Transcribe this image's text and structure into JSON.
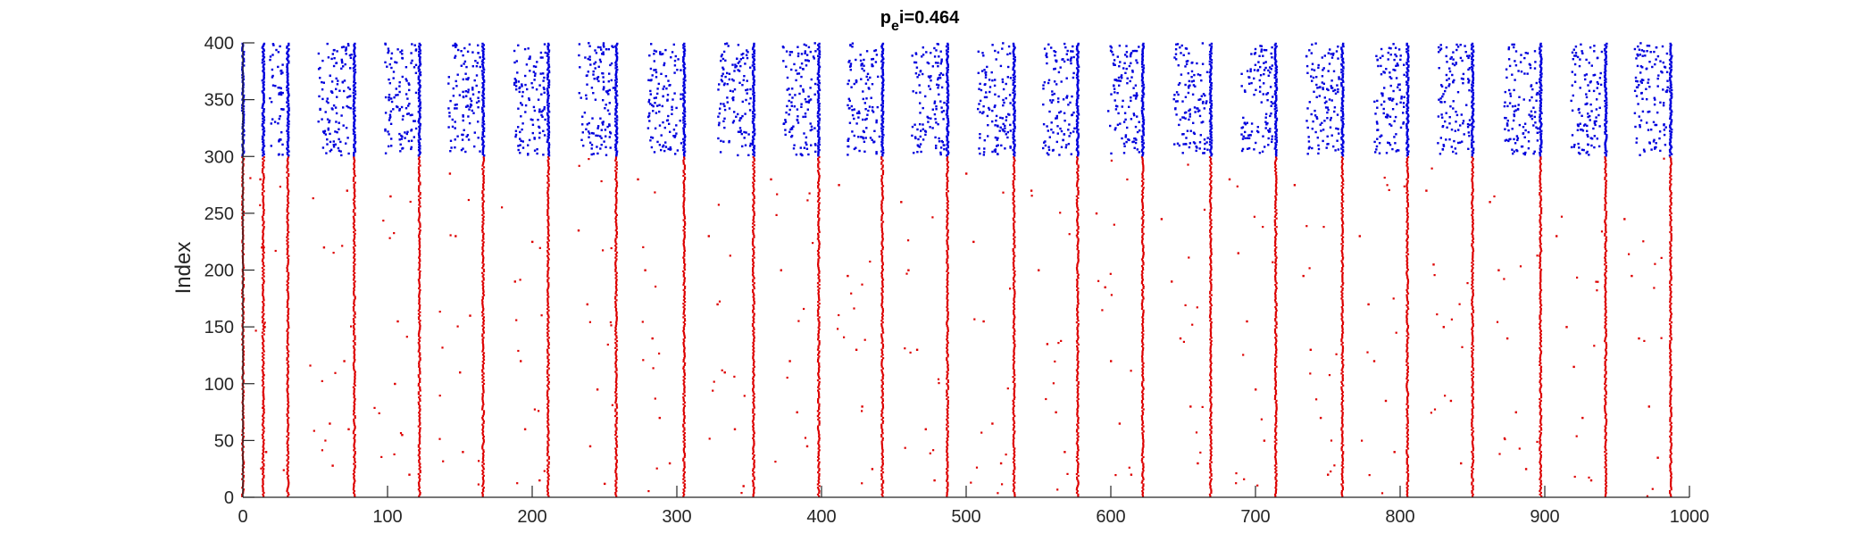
{
  "chart_data": {
    "type": "scatter",
    "title": "p",
    "title_subscript": "e",
    "title_rest": "i=0.464",
    "xlabel": "",
    "ylabel": "Index",
    "xlim": [
      0,
      1000
    ],
    "ylim": [
      0,
      400
    ],
    "xticks": [
      0,
      100,
      200,
      300,
      400,
      500,
      600,
      700,
      800,
      900,
      1000
    ],
    "yticks": [
      0,
      50,
      100,
      150,
      200,
      250,
      300,
      350,
      400
    ],
    "grid": false,
    "legend": "none",
    "burst_times": [
      0,
      14,
      31,
      77,
      122,
      166,
      211,
      258,
      305,
      353,
      398,
      442,
      487,
      533,
      577,
      622,
      669,
      714,
      760,
      805,
      850,
      897,
      942,
      987
    ],
    "series": [
      {
        "group": "excitatory",
        "index_range": [
          1,
          300
        ],
        "color": "#dd0000",
        "pattern": "dense vertical bursts of spikes at each burst time, with sparse scattered spikes between bursts",
        "sample_points": [
          [
            12,
            280
          ],
          [
            13,
            220
          ],
          [
            15,
            150
          ],
          [
            14,
            90
          ],
          [
            16,
            40
          ],
          [
            56,
            220
          ],
          [
            60,
            65
          ],
          [
            62,
            28
          ],
          [
            72,
            270
          ],
          [
            70,
            120
          ],
          [
            73,
            60
          ],
          [
            102,
            265
          ],
          [
            107,
            155
          ],
          [
            105,
            100
          ],
          [
            110,
            55
          ],
          [
            115,
            20
          ],
          [
            143,
            285
          ],
          [
            147,
            230
          ],
          [
            150,
            110
          ],
          [
            152,
            40
          ],
          [
            157,
            160
          ],
          [
            188,
            190
          ],
          [
            192,
            120
          ],
          [
            195,
            60
          ],
          [
            200,
            225
          ],
          [
            205,
            15
          ],
          [
            232,
            235
          ],
          [
            238,
            170
          ],
          [
            240,
            45
          ],
          [
            245,
            95
          ],
          [
            250,
            12
          ],
          [
            273,
            280
          ],
          [
            278,
            200
          ],
          [
            283,
            140
          ],
          [
            288,
            70
          ],
          [
            295,
            30
          ],
          [
            322,
            230
          ],
          [
            328,
            170
          ],
          [
            333,
            110
          ],
          [
            340,
            60
          ],
          [
            346,
            10
          ],
          [
            365,
            280
          ],
          [
            372,
            200
          ],
          [
            378,
            120
          ],
          [
            383,
            75
          ],
          [
            390,
            45
          ],
          [
            412,
            275
          ],
          [
            418,
            195
          ],
          [
            424,
            130
          ],
          [
            428,
            80
          ],
          [
            435,
            25
          ],
          [
            455,
            260
          ],
          [
            460,
            200
          ],
          [
            466,
            130
          ],
          [
            472,
            60
          ],
          [
            478,
            15
          ],
          [
            500,
            285
          ],
          [
            505,
            225
          ],
          [
            512,
            155
          ],
          [
            518,
            65
          ],
          [
            524,
            30
          ],
          [
            545,
            270
          ],
          [
            550,
            200
          ],
          [
            556,
            135
          ],
          [
            562,
            75
          ],
          [
            568,
            40
          ],
          [
            590,
            250
          ],
          [
            596,
            185
          ],
          [
            600,
            120
          ],
          [
            606,
            65
          ],
          [
            614,
            20
          ],
          [
            635,
            245
          ],
          [
            642,
            190
          ],
          [
            648,
            140
          ],
          [
            655,
            80
          ],
          [
            660,
            30
          ],
          [
            682,
            280
          ],
          [
            688,
            215
          ],
          [
            694,
            155
          ],
          [
            700,
            95
          ],
          [
            706,
            50
          ],
          [
            727,
            275
          ],
          [
            733,
            195
          ],
          [
            738,
            130
          ],
          [
            745,
            70
          ],
          [
            750,
            20
          ],
          [
            772,
            230
          ],
          [
            778,
            170
          ],
          [
            782,
            120
          ],
          [
            790,
            85
          ],
          [
            796,
            40
          ],
          [
            818,
            270
          ],
          [
            823,
            205
          ],
          [
            830,
            150
          ],
          [
            835,
            85
          ],
          [
            842,
            30
          ],
          [
            862,
            260
          ],
          [
            868,
            200
          ],
          [
            874,
            140
          ],
          [
            880,
            75
          ],
          [
            887,
            25
          ],
          [
            908,
            230
          ],
          [
            915,
            150
          ],
          [
            920,
            115
          ],
          [
            926,
            70
          ],
          [
            932,
            15
          ],
          [
            955,
            245
          ],
          [
            960,
            195
          ],
          [
            965,
            140
          ],
          [
            972,
            80
          ],
          [
            978,
            35
          ]
        ]
      },
      {
        "group": "inhibitory",
        "index_range": [
          301,
          400
        ],
        "color": "#0000dd",
        "pattern": "dense vertical bursts at each burst time, with many scattered spikes filling the gaps between bursts",
        "scatter_windows": [
          [
            18,
            28
          ],
          [
            52,
            75
          ],
          [
            98,
            120
          ],
          [
            142,
            164
          ],
          [
            187,
            209
          ],
          [
            232,
            256
          ],
          [
            280,
            303
          ],
          [
            328,
            351
          ],
          [
            373,
            396
          ],
          [
            418,
            440
          ],
          [
            462,
            485
          ],
          [
            508,
            531
          ],
          [
            553,
            575
          ],
          [
            598,
            620
          ],
          [
            643,
            667
          ],
          [
            690,
            712
          ],
          [
            735,
            758
          ],
          [
            782,
            803
          ],
          [
            826,
            848
          ],
          [
            872,
            895
          ],
          [
            918,
            940
          ],
          [
            962,
            985
          ]
        ]
      }
    ]
  }
}
